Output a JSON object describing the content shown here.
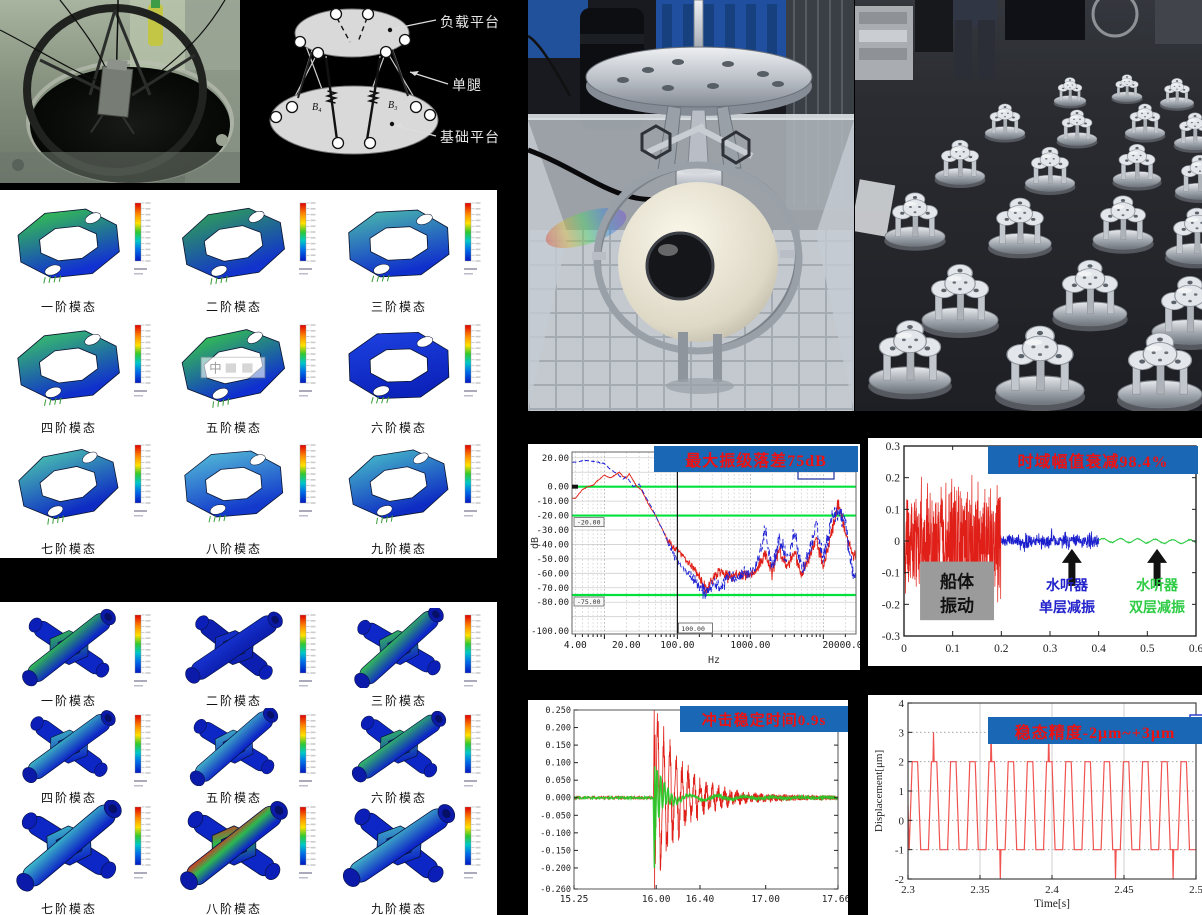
{
  "diagram": {
    "labels": {
      "load_platform": "负载平台",
      "leg": "单腿",
      "base_platform": "基础平台"
    },
    "joint_labels": [
      "B₄",
      "B₃"
    ]
  },
  "modal_grid_rings": {
    "caption_labels": [
      "一阶模态",
      "二阶模态",
      "三阶模态",
      "四阶模态",
      "五阶模态",
      "六阶模态",
      "七阶模态",
      "八阶模态",
      "九阶模态"
    ],
    "watermark_cell": 4,
    "watermark_text": "中",
    "colors": [
      [
        "#35c24f",
        "#1231d2"
      ],
      [
        "#2f9e5a",
        "#1233cc"
      ],
      [
        "#49b8ad",
        "#1030cc"
      ],
      [
        "#38c06a",
        "#1030cc"
      ],
      [
        "#35c24f",
        "#0f2fd0"
      ],
      [
        "#1d41e0",
        "#0c23bb"
      ],
      [
        "#49c0b0",
        "#0e2cc4"
      ],
      [
        "#52b9d6",
        "#1238cc"
      ],
      [
        "#45b7c8",
        "#0e2cc4"
      ]
    ]
  },
  "modal_grid_shafts": {
    "caption_labels": [
      "一阶模态",
      "二阶模态",
      "三阶模态",
      "四阶模态",
      "五阶模态",
      "六阶模态",
      "七阶模态",
      "八阶模态",
      "九阶模态"
    ],
    "colors": [
      [
        "#34c04e",
        "#0d26c6"
      ],
      [
        "#1733cf",
        "#0c1fb0"
      ],
      [
        "#37c353",
        "#0e27c8"
      ],
      [
        "#3fb9c0",
        "#0d26c6"
      ],
      [
        "#43b4c6",
        "#0d26c6"
      ],
      [
        "#35bf62",
        "#0d26c6"
      ],
      [
        "#3fc0c8",
        "#0d26c6"
      ],
      [
        "#e03020",
        "#2db84f",
        "#0d26c6"
      ],
      [
        "#43b4c6",
        "#0d26c6"
      ]
    ]
  },
  "banner_style": {
    "bg": "#1a67b5",
    "text_color": "#ee1111"
  },
  "chart_data": [
    {
      "id": "frf",
      "type": "line",
      "title": "最大振级落差75dB",
      "xlabel": "Hz",
      "ylabel": "dB",
      "xscale": "log",
      "xlim": [
        3.6,
        28000
      ],
      "ylim": [
        -102,
        24
      ],
      "xticks": [
        4,
        20,
        100,
        1000,
        20000
      ],
      "xtick_labels": [
        "4.00",
        "20.00",
        "100.00",
        "1000.00",
        "20000.00"
      ],
      "yticks": [
        20,
        0,
        -10,
        -20,
        -30,
        -40,
        -50,
        -60,
        -70,
        -80,
        -100
      ],
      "ytick_labels": [
        "20.00",
        "0.00",
        "-10.00",
        "-20.00",
        "-30.00",
        "-40.00",
        "-50.00",
        "-60.00",
        "-70.00",
        "-80.00",
        "-100.00"
      ],
      "green_hlines": [
        0,
        -20,
        -75
      ],
      "hline_box_labels": [
        "-20.00",
        "-75.00"
      ],
      "cursor_x": 100,
      "cursor_label": "100.00",
      "series": [
        {
          "name": "before-isolation",
          "color": "#e02018",
          "style": "solid",
          "noise_db": 6,
          "points": [
            [
              4,
              -8
            ],
            [
              5,
              -2
            ],
            [
              6,
              0
            ],
            [
              7,
              1
            ],
            [
              8,
              4
            ],
            [
              10,
              8
            ],
            [
              12,
              6
            ],
            [
              14,
              8
            ],
            [
              16,
              10
            ],
            [
              18,
              7
            ],
            [
              20,
              6
            ],
            [
              22,
              9
            ],
            [
              25,
              4
            ],
            [
              28,
              0
            ],
            [
              32,
              -2
            ],
            [
              40,
              -12
            ],
            [
              50,
              -20
            ],
            [
              63,
              -30
            ],
            [
              80,
              -40
            ],
            [
              100,
              -44
            ],
            [
              130,
              -50
            ],
            [
              160,
              -55
            ],
            [
              200,
              -63
            ],
            [
              250,
              -72
            ],
            [
              320,
              -62
            ],
            [
              400,
              -58
            ],
            [
              500,
              -63
            ],
            [
              630,
              -60
            ],
            [
              800,
              -61
            ],
            [
              1000,
              -62
            ],
            [
              1300,
              -56
            ],
            [
              1600,
              -46
            ],
            [
              2000,
              -60
            ],
            [
              2500,
              -42
            ],
            [
              3200,
              -56
            ],
            [
              4000,
              -46
            ],
            [
              5000,
              -60
            ],
            [
              6300,
              -50
            ],
            [
              8000,
              -36
            ],
            [
              10000,
              -55
            ],
            [
              13000,
              -32
            ],
            [
              16000,
              -10
            ],
            [
              20000,
              -32
            ],
            [
              26000,
              -48
            ]
          ]
        },
        {
          "name": "after-isolation",
          "color": "#1f22d4",
          "style": "dashed",
          "noise_db": 8,
          "points": [
            [
              4,
              17
            ],
            [
              5,
              18
            ],
            [
              6,
              18
            ],
            [
              8,
              17
            ],
            [
              10,
              16
            ],
            [
              12,
              12
            ],
            [
              15,
              9
            ],
            [
              18,
              5
            ],
            [
              20,
              7
            ],
            [
              25,
              0
            ],
            [
              30,
              2
            ],
            [
              35,
              -5
            ],
            [
              45,
              -15
            ],
            [
              60,
              -28
            ],
            [
              80,
              -42
            ],
            [
              100,
              -52
            ],
            [
              130,
              -58
            ],
            [
              160,
              -63
            ],
            [
              200,
              -70
            ],
            [
              250,
              -75
            ],
            [
              320,
              -66
            ],
            [
              400,
              -70
            ],
            [
              500,
              -61
            ],
            [
              630,
              -66
            ],
            [
              800,
              -59
            ],
            [
              1000,
              -61
            ],
            [
              1300,
              -51
            ],
            [
              1600,
              -30
            ],
            [
              2000,
              -56
            ],
            [
              2500,
              -36
            ],
            [
              3200,
              -52
            ],
            [
              4000,
              -32
            ],
            [
              5000,
              -56
            ],
            [
              6300,
              -46
            ],
            [
              8000,
              -27
            ],
            [
              10000,
              -50
            ],
            [
              13000,
              -22
            ],
            [
              16000,
              -17
            ],
            [
              20000,
              -27
            ],
            [
              26000,
              -62
            ]
          ]
        }
      ]
    },
    {
      "id": "time",
      "type": "line",
      "title": "时域幅值衰减98.4%",
      "xlim": [
        0,
        0.6
      ],
      "ylim": [
        -0.3,
        0.3
      ],
      "xticks": [
        0,
        0.1,
        0.2,
        0.3,
        0.4,
        0.5,
        0.6
      ],
      "xtick_labels": [
        "0",
        "0.1",
        "0.2",
        "0.3",
        "0.4",
        "0.5",
        "0.6"
      ],
      "yticks": [
        0.3,
        0.2,
        0.1,
        0,
        -0.1,
        -0.2,
        -0.3
      ],
      "ytick_labels": [
        "0.3",
        "0.2",
        "0.1",
        "0",
        "-0.1",
        "-0.2",
        "-0.3"
      ],
      "segments": [
        {
          "name": "船体振动",
          "color": "#e02018",
          "t0": 0,
          "t1": 0.2,
          "amplitude": 0.2,
          "peak": 0.25
        },
        {
          "name": "水听器单层减振",
          "color": "#1a1ecc",
          "t0": 0.2,
          "t1": 0.4,
          "amplitude": 0.02,
          "peak": 0.04
        },
        {
          "name": "水听器双层减振",
          "color": "#2ecc45",
          "t0": 0.4,
          "t1": 0.6,
          "amplitude": 0.008,
          "peak": 0.012
        }
      ],
      "annotations": {
        "gray_box_lines": [
          "船体",
          "振动"
        ],
        "arrow1_x": 0.345,
        "arrow2_x": 0.52,
        "blue_label_lines": [
          "水听器",
          "单层减振"
        ],
        "green_label_lines": [
          "水听器",
          "双层减振"
        ]
      }
    },
    {
      "id": "shock",
      "type": "line",
      "title": "冲击稳定时间0.9s",
      "xlim": [
        15.25,
        17.66
      ],
      "ylim": [
        -0.26,
        0.25
      ],
      "xticks": [
        15.25,
        16.0,
        16.4,
        17.0,
        17.66
      ],
      "xtick_labels": [
        "15.25",
        "16.00",
        "16.40",
        "17.00",
        "17.66"
      ],
      "yticks": [
        0.25,
        0.2,
        0.15,
        0.1,
        0.05,
        0,
        -0.05,
        -0.1,
        -0.15,
        -0.2,
        -0.26
      ],
      "ytick_labels": [
        "0.250",
        "0.200",
        "0.150",
        "0.100",
        "0.050",
        "0.000",
        "-0.050",
        "-0.100",
        "-0.150",
        "-0.200",
        "-0.260"
      ],
      "shock_time": 16.0,
      "series": [
        {
          "name": "shock-response",
          "color": "#e02018",
          "peak": 0.25,
          "trough": -0.26,
          "decay_tau": 0.22,
          "osc_hz": 18
        },
        {
          "name": "stabilized",
          "color": "#28c828",
          "peak": 0.09,
          "trough": -0.2,
          "decay_tau": 0.08,
          "osc_hz": 30
        }
      ]
    },
    {
      "id": "steady",
      "type": "line",
      "title": "稳态精度-2μm~+3μm",
      "xlabel": "Time[s]",
      "ylabel": "Displacement[μm]",
      "xlim": [
        2.3,
        2.5
      ],
      "ylim": [
        -2,
        4
      ],
      "xticks": [
        2.3,
        2.35,
        2.4,
        2.45,
        2.5
      ],
      "xtick_labels": [
        "2.3",
        "2.35",
        "2.4",
        "2.45",
        "2.5"
      ],
      "yticks": [
        4,
        3,
        2,
        1,
        0,
        -1,
        -2
      ],
      "ytick_labels": [
        "4",
        "3",
        "2",
        "1",
        "0",
        "-1",
        "-2"
      ],
      "color": "#ef5350",
      "wave": {
        "period_s": 0.013333,
        "base_peak": 2,
        "base_trough": -1,
        "cycle_peaks": [
          2,
          3,
          2,
          2,
          3,
          2,
          2,
          3,
          2,
          2,
          2,
          2,
          2,
          2,
          2
        ],
        "cycle_troughs": [
          -1,
          -1,
          -1,
          -1,
          -2,
          -1,
          -1,
          -1,
          -1,
          -1,
          -2,
          -1,
          -1,
          -2,
          -1
        ]
      }
    }
  ]
}
